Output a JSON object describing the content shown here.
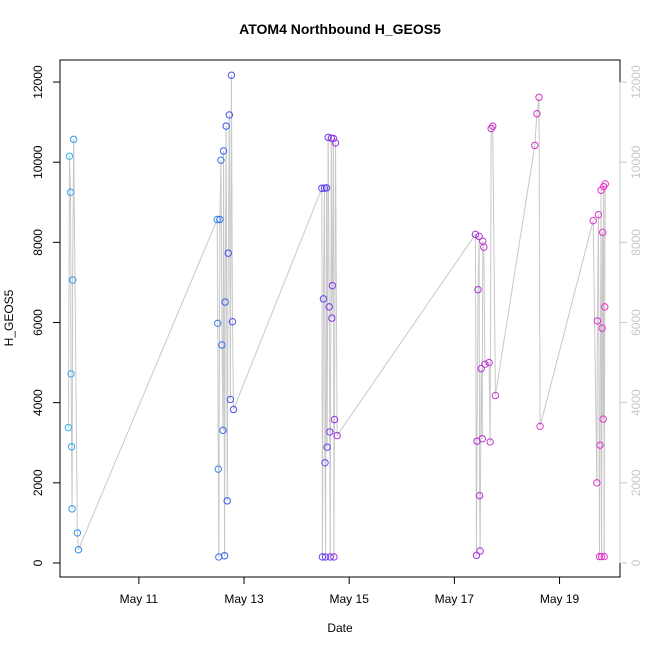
{
  "chart_data": {
    "type": "scatter",
    "title": "ATOM4 Northbound H_GEOS5",
    "xlabel": "Date",
    "ylabel": "H_GEOS5",
    "x_ticks": [
      {
        "value": 11.0,
        "label": "May 11"
      },
      {
        "value": 13.0,
        "label": "May 13"
      },
      {
        "value": 15.0,
        "label": "May 15"
      },
      {
        "value": 17.0,
        "label": "May 17"
      },
      {
        "value": 19.0,
        "label": "May 19"
      }
    ],
    "y_ticks": [
      0,
      2000,
      4000,
      6000,
      8000,
      10000,
      12000
    ],
    "y_right_ticks": [
      0,
      2000,
      4000,
      6000,
      8000,
      10000,
      12000
    ],
    "xlim": [
      9.5,
      20.15
    ],
    "ylim": [
      -350,
      12550
    ],
    "grid": false,
    "connected_line_color": "#c8c8c8",
    "color_gradient": [
      "#33b5ee",
      "#3355ee",
      "#8833ee",
      "#cc33cc",
      "#ee33cc"
    ],
    "series": [
      {
        "points": [
          [
            9.66,
            3380
          ],
          [
            9.68,
            10150
          ],
          [
            9.7,
            9250
          ],
          [
            9.71,
            4720
          ],
          [
            9.72,
            2900
          ],
          [
            9.73,
            1350
          ],
          [
            9.74,
            7060
          ],
          [
            9.76,
            10570
          ],
          [
            9.83,
            750
          ],
          [
            9.85,
            330
          ],
          [
            12.49,
            8570
          ],
          [
            12.5,
            5980
          ],
          [
            12.51,
            2340
          ],
          [
            12.52,
            150
          ],
          [
            12.54,
            8570
          ],
          [
            12.56,
            10050
          ],
          [
            12.58,
            5440
          ],
          [
            12.6,
            3310
          ],
          [
            12.61,
            10280
          ],
          [
            12.63,
            180
          ],
          [
            12.64,
            6510
          ],
          [
            12.66,
            10900
          ],
          [
            12.68,
            1550
          ],
          [
            12.7,
            7730
          ],
          [
            12.72,
            11180
          ],
          [
            12.74,
            4080
          ],
          [
            12.76,
            12170
          ],
          [
            12.78,
            6020
          ],
          [
            12.8,
            3830
          ],
          [
            14.48,
            9350
          ],
          [
            14.49,
            150
          ],
          [
            14.51,
            6590
          ],
          [
            14.53,
            9350
          ],
          [
            14.54,
            2500
          ],
          [
            14.55,
            150
          ],
          [
            14.57,
            9360
          ],
          [
            14.58,
            2890
          ],
          [
            14.6,
            10620
          ],
          [
            14.62,
            6390
          ],
          [
            14.63,
            3270
          ],
          [
            14.64,
            150
          ],
          [
            14.66,
            10600
          ],
          [
            14.67,
            6110
          ],
          [
            14.68,
            6920
          ],
          [
            14.7,
            10590
          ],
          [
            14.71,
            150
          ],
          [
            14.72,
            3580
          ],
          [
            14.74,
            10480
          ],
          [
            14.77,
            3180
          ],
          [
            17.4,
            8200
          ],
          [
            17.42,
            190
          ],
          [
            17.43,
            3040
          ],
          [
            17.45,
            6820
          ],
          [
            17.47,
            8150
          ],
          [
            17.48,
            1680
          ],
          [
            17.49,
            300
          ],
          [
            17.51,
            4850
          ],
          [
            17.53,
            3100
          ],
          [
            17.54,
            8030
          ],
          [
            17.56,
            7880
          ],
          [
            17.58,
            4960
          ],
          [
            17.66,
            5000
          ],
          [
            17.68,
            3020
          ],
          [
            17.7,
            10840
          ],
          [
            17.73,
            10900
          ],
          [
            17.78,
            4180
          ],
          [
            18.53,
            10420
          ],
          [
            18.57,
            11210
          ],
          [
            18.61,
            11620
          ],
          [
            18.63,
            3410
          ],
          [
            19.64,
            8540
          ],
          [
            19.71,
            2000
          ],
          [
            19.72,
            6040
          ],
          [
            19.74,
            8690
          ],
          [
            19.76,
            160
          ],
          [
            19.77,
            2940
          ],
          [
            19.79,
            9300
          ],
          [
            19.8,
            160
          ],
          [
            19.81,
            5860
          ],
          [
            19.82,
            8250
          ],
          [
            19.83,
            3590
          ],
          [
            19.84,
            9390
          ],
          [
            19.85,
            160
          ],
          [
            19.86,
            6390
          ],
          [
            19.87,
            9460
          ]
        ]
      }
    ]
  }
}
